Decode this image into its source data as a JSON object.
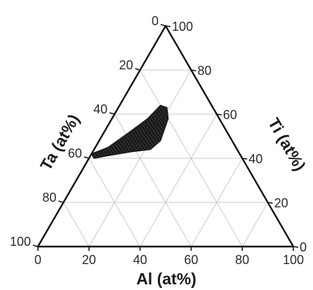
{
  "chart_data": {
    "type": "ternary",
    "axes": {
      "bottom": {
        "label": "Al (at%)",
        "ticks": [
          "0",
          "20",
          "40",
          "60",
          "80",
          "100"
        ]
      },
      "left": {
        "label": "Ta (at%)",
        "ticks": [
          "0",
          "20",
          "40",
          "60",
          "80",
          "100"
        ]
      },
      "right": {
        "label": "Ti (at%)",
        "ticks": [
          "0",
          "20",
          "40",
          "60",
          "80",
          "100"
        ]
      }
    },
    "grid_step": 20,
    "grid": true,
    "region_color": "#1a1a1a",
    "region": [
      {
        "Al": 0,
        "Ta": 58,
        "Ti": 42
      },
      {
        "Al": 5,
        "Ta": 50,
        "Ti": 45
      },
      {
        "Al": 10,
        "Ta": 38,
        "Ti": 52
      },
      {
        "Al": 14,
        "Ta": 28,
        "Ti": 58
      },
      {
        "Al": 16,
        "Ta": 20,
        "Ti": 64
      },
      {
        "Al": 19,
        "Ta": 18,
        "Ti": 63
      },
      {
        "Al": 22,
        "Ta": 20,
        "Ti": 58
      },
      {
        "Al": 24,
        "Ta": 28,
        "Ti": 48
      },
      {
        "Al": 22,
        "Ta": 34,
        "Ti": 44
      },
      {
        "Al": 15,
        "Ta": 42,
        "Ti": 43
      },
      {
        "Al": 6,
        "Ta": 53,
        "Ti": 41
      },
      {
        "Al": 2,
        "Ta": 58,
        "Ti": 40
      }
    ]
  }
}
